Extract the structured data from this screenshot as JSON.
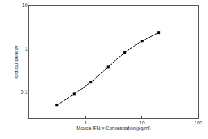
{
  "chart_data": {
    "type": "scatter",
    "x_label": "Mouse IFN-γ Concentration(pg/ml)",
    "y_label": "Optical Density",
    "x": [
      0.3125,
      0.625,
      1.25,
      2.5,
      5,
      10,
      20
    ],
    "values": [
      0.05,
      0.09,
      0.17,
      0.38,
      0.82,
      1.5,
      2.35
    ],
    "color": "#000000",
    "marker": "square",
    "line_style": "solid",
    "log": true,
    "grid": false,
    "xlim": [
      0.1,
      100
    ],
    "xticks": [
      1,
      10,
      100
    ],
    "ylim": [
      0.025,
      10
    ],
    "yticks": [
      0.1,
      1,
      10
    ]
  }
}
